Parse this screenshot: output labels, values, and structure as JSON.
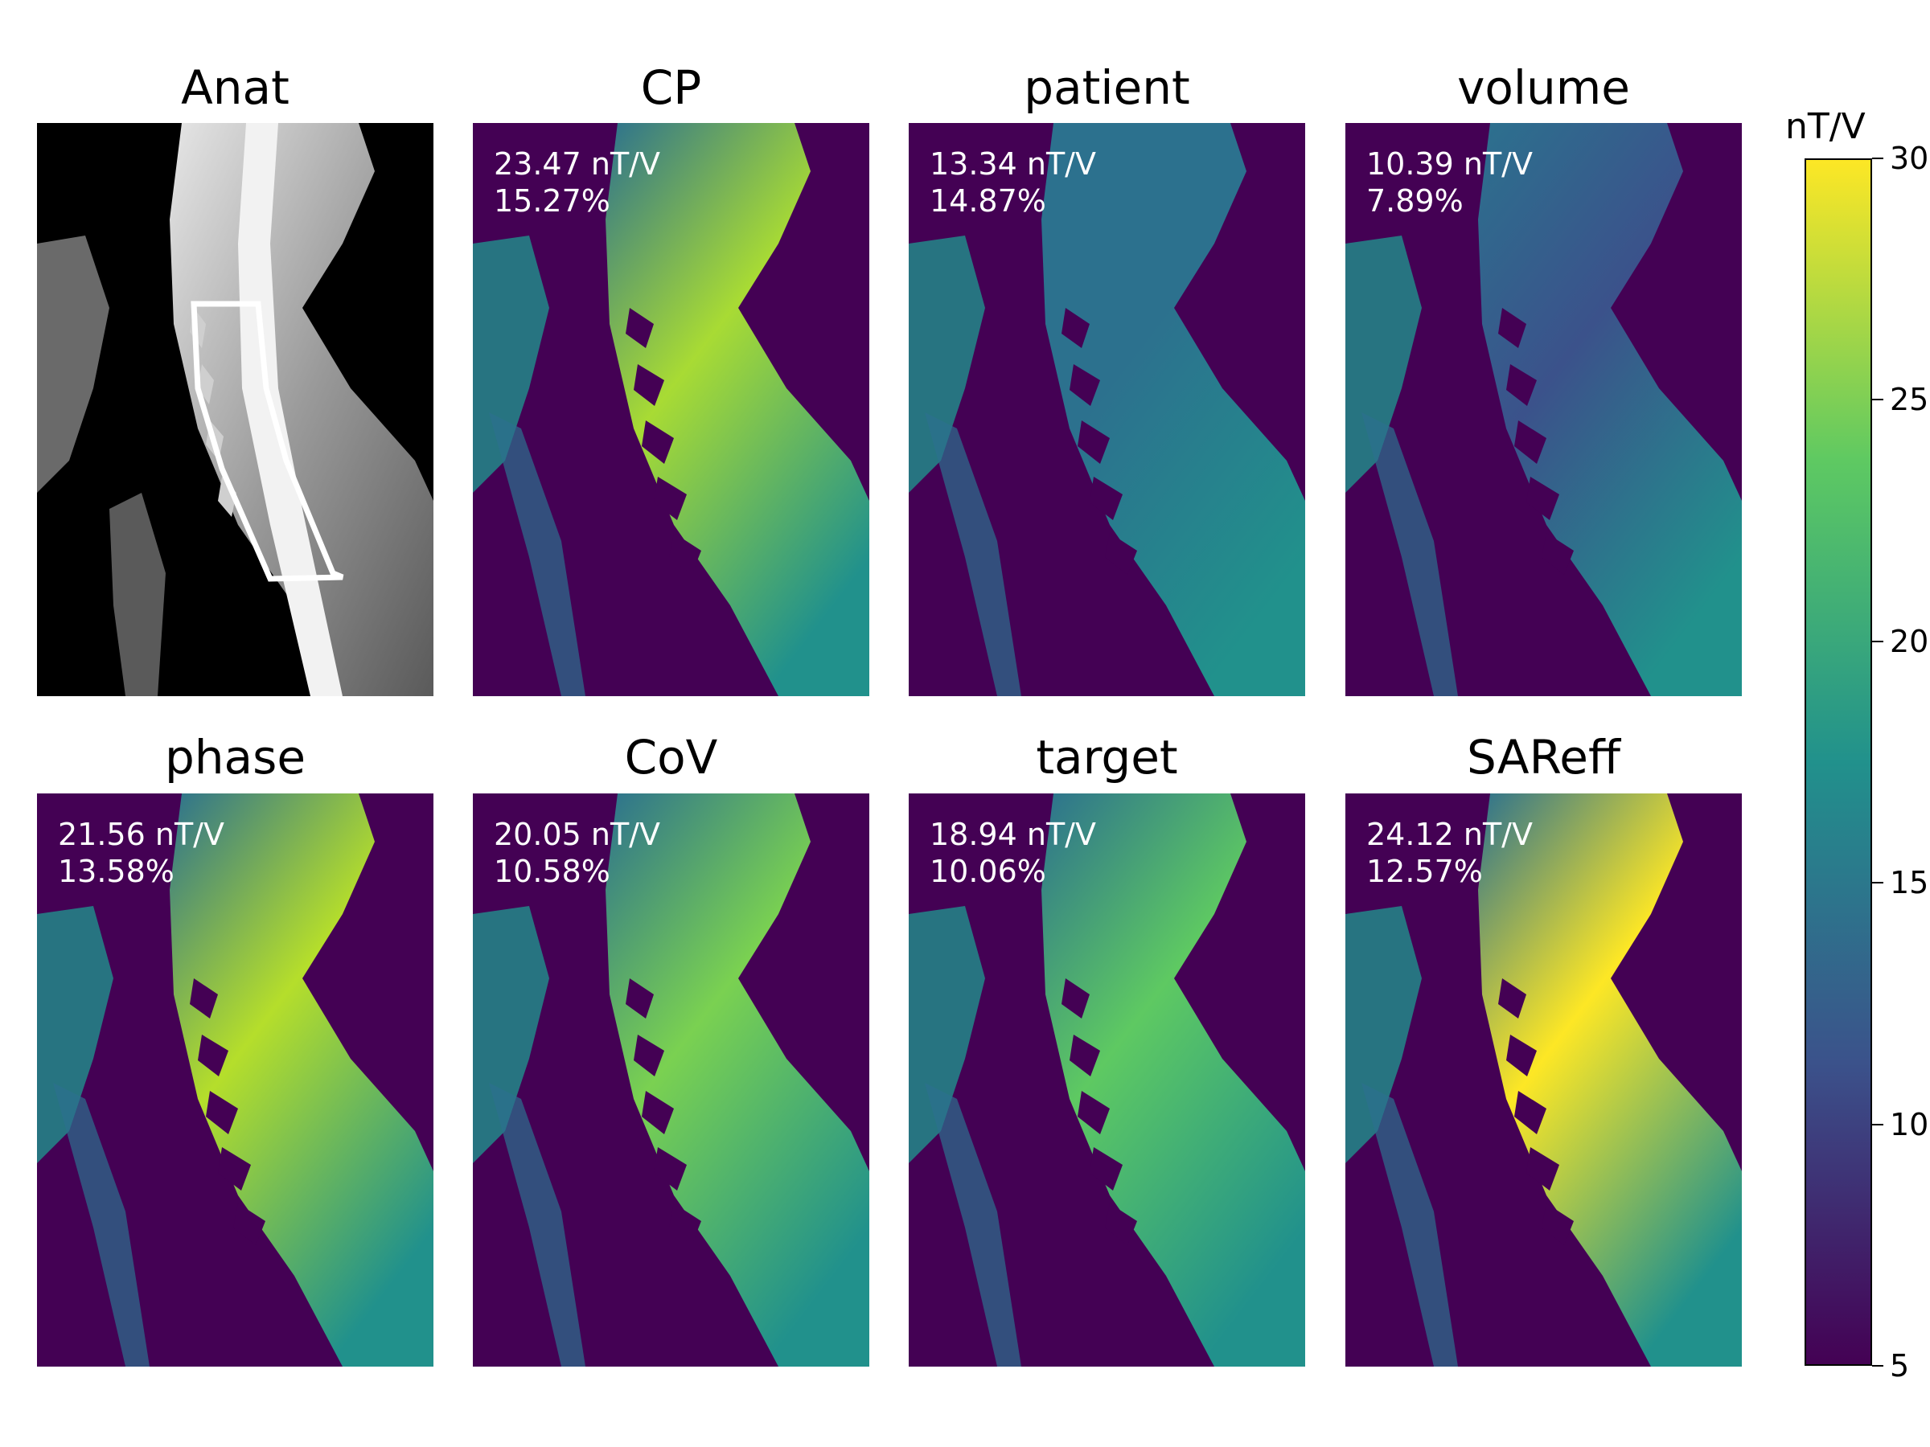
{
  "panels": [
    {
      "title": "Anat",
      "value": "",
      "percent": "",
      "kind": "anat"
    },
    {
      "title": "CP",
      "value": "23.47 nT/V",
      "percent": "15.27%",
      "kind": "map",
      "accent": "#a8db34"
    },
    {
      "title": "patient",
      "value": "13.34 nT/V",
      "percent": "14.87%",
      "kind": "map",
      "accent": "#2c718e"
    },
    {
      "title": "volume",
      "value": "10.39 nT/V",
      "percent": "7.89%",
      "kind": "map",
      "accent": "#3b528b"
    },
    {
      "title": "phase",
      "value": "21.56 nT/V",
      "percent": "13.58%",
      "kind": "map",
      "accent": "#b5de2b"
    },
    {
      "title": "CoV",
      "value": "20.05 nT/V",
      "percent": "10.58%",
      "kind": "map",
      "accent": "#7ad151"
    },
    {
      "title": "target",
      "value": "18.94 nT/V",
      "percent": "10.06%",
      "kind": "map",
      "accent": "#5ec962"
    },
    {
      "title": "SAReff",
      "value": "24.12 nT/V",
      "percent": "12.57%",
      "kind": "map",
      "accent": "#fde725"
    }
  ],
  "colorbar": {
    "unit": "nT/V",
    "ticks": [
      "5",
      "10",
      "15",
      "20",
      "25",
      "30"
    ],
    "colormap": "viridis",
    "colors": [
      "#440154",
      "#3b528b",
      "#21918c",
      "#5ec962",
      "#fde725"
    ]
  }
}
